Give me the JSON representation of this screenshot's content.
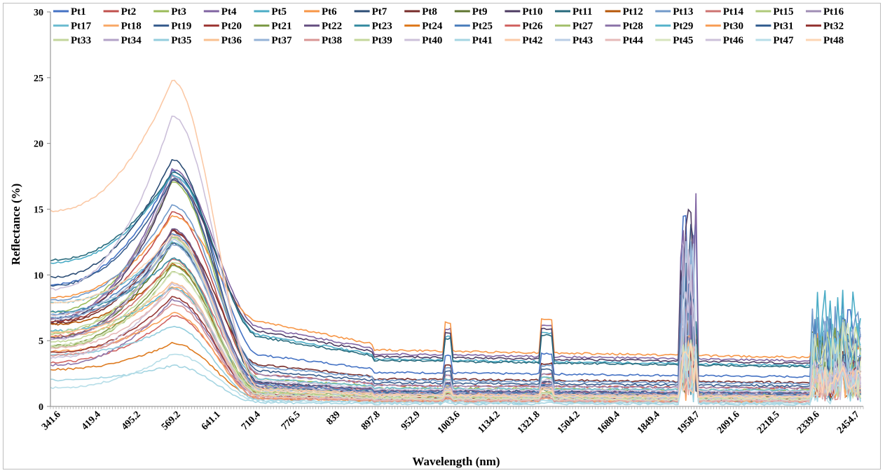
{
  "chart_data": {
    "type": "line",
    "title": "",
    "xlabel": "Wavelength (nm)",
    "ylabel": "Reflectance (%)",
    "ylim": [
      0,
      30
    ],
    "yticks": [
      0,
      5,
      10,
      15,
      20,
      25,
      30
    ],
    "x_tick_labels": [
      "341.6",
      "419.4",
      "495.2",
      "569.2",
      "641.1",
      "710.4",
      "776.5",
      "839",
      "897.8",
      "952.9",
      "1003.6",
      "1134.2",
      "1321.8",
      "1504.2",
      "1680.4",
      "1849.4",
      "1958.7",
      "2091.6",
      "2218.5",
      "2339.6",
      "2454.7"
    ],
    "x_range": [
      341.6,
      2500
    ],
    "grid": false,
    "legend_position": "top",
    "legend": [
      "Pt1",
      "Pt2",
      "Pt3",
      "Pt4",
      "Pt5",
      "Pt6",
      "Pt7",
      "Pt8",
      "Pt9",
      "Pt10",
      "Pt11",
      "Pt12",
      "Pt13",
      "Pt14",
      "Pt15",
      "Pt16",
      "Pt17",
      "Pt18",
      "Pt19",
      "Pt20",
      "Pt21",
      "Pt22",
      "Pt23",
      "Pt24",
      "Pt25",
      "Pt26",
      "Pt27",
      "Pt28",
      "Pt29",
      "Pt30",
      "Pt31",
      "Pt32",
      "Pt33",
      "Pt34",
      "Pt35",
      "Pt36",
      "Pt37",
      "Pt38",
      "Pt39",
      "Pt40",
      "Pt41",
      "Pt42",
      "Pt43",
      "Pt44",
      "Pt45",
      "Pt46",
      "Pt47",
      "Pt48"
    ],
    "colors": [
      "#4472C4",
      "#C0504D",
      "#9BBB59",
      "#8064A2",
      "#4BACC6",
      "#F79646",
      "#2C4D75",
      "#772C2A",
      "#5F7530",
      "#4D3B62",
      "#276A7C",
      "#B65708",
      "#729ACA",
      "#CD7371",
      "#AFC97A",
      "#A08EB5",
      "#6FBDD1",
      "#F9AB6B",
      "#3A5F8F",
      "#9E3A37",
      "#7E9B48",
      "#6A5585",
      "#3B8EA3",
      "#DE7B20",
      "#4F81BD",
      "#D16563",
      "#A6C170",
      "#8F77AB",
      "#5BB5CC",
      "#F8A05A",
      "#376092",
      "#953735",
      "#C3D69B",
      "#B3A2C7",
      "#93CDDD",
      "#FAC090",
      "#95B3D7",
      "#D99694",
      "#C4D79B",
      "#CCC1DA",
      "#A5D5E2",
      "#FBC9A6",
      "#B9CDE5",
      "#E6B9B8",
      "#D7E4BD",
      "#CCC0DA",
      "#B7DEE8",
      "#FCD5B4"
    ],
    "series_profile": {
      "note": "48 reflectance spectra; each defined by peak reflectance near 569 nm and plateau level beyond 776 nm",
      "peaks": [
        17.9,
        14.8,
        17.1,
        18.0,
        17.6,
        14.5,
        18.8,
        13.3,
        12.4,
        17.2,
        17.8,
        10.8,
        15.3,
        11.2,
        12.9,
        17.5,
        12.5,
        9.1,
        17.3,
        13.4,
        10.7,
        13.5,
        11.3,
        4.8,
        13.1,
        6.9,
        10.3,
        8.1,
        9.0,
        7.1,
        12.4,
        8.3,
        12.8,
        13.0,
        6.1,
        9.4,
        12.3,
        7.8,
        11.0,
        9.3,
        3.1,
        24.8,
        12.7,
        8.9,
        10.2,
        22.1,
        4.0,
        13.0
      ],
      "plateaus": [
        2.6,
        1.6,
        1.4,
        4.0,
        3.6,
        4.3,
        1.2,
        2.1,
        0.9,
        3.8,
        3.5,
        0.6,
        2.0,
        1.1,
        1.0,
        1.6,
        1.4,
        0.7,
        1.8,
        0.9,
        0.8,
        1.2,
        0.5,
        0.4,
        1.1,
        0.6,
        0.7,
        0.5,
        0.6,
        0.4,
        1.0,
        0.6,
        0.9,
        1.0,
        0.3,
        0.5,
        0.9,
        0.4,
        0.7,
        0.6,
        0.2,
        0.9,
        0.8,
        0.5,
        0.6,
        1.3,
        0.3,
        0.8
      ]
    }
  }
}
